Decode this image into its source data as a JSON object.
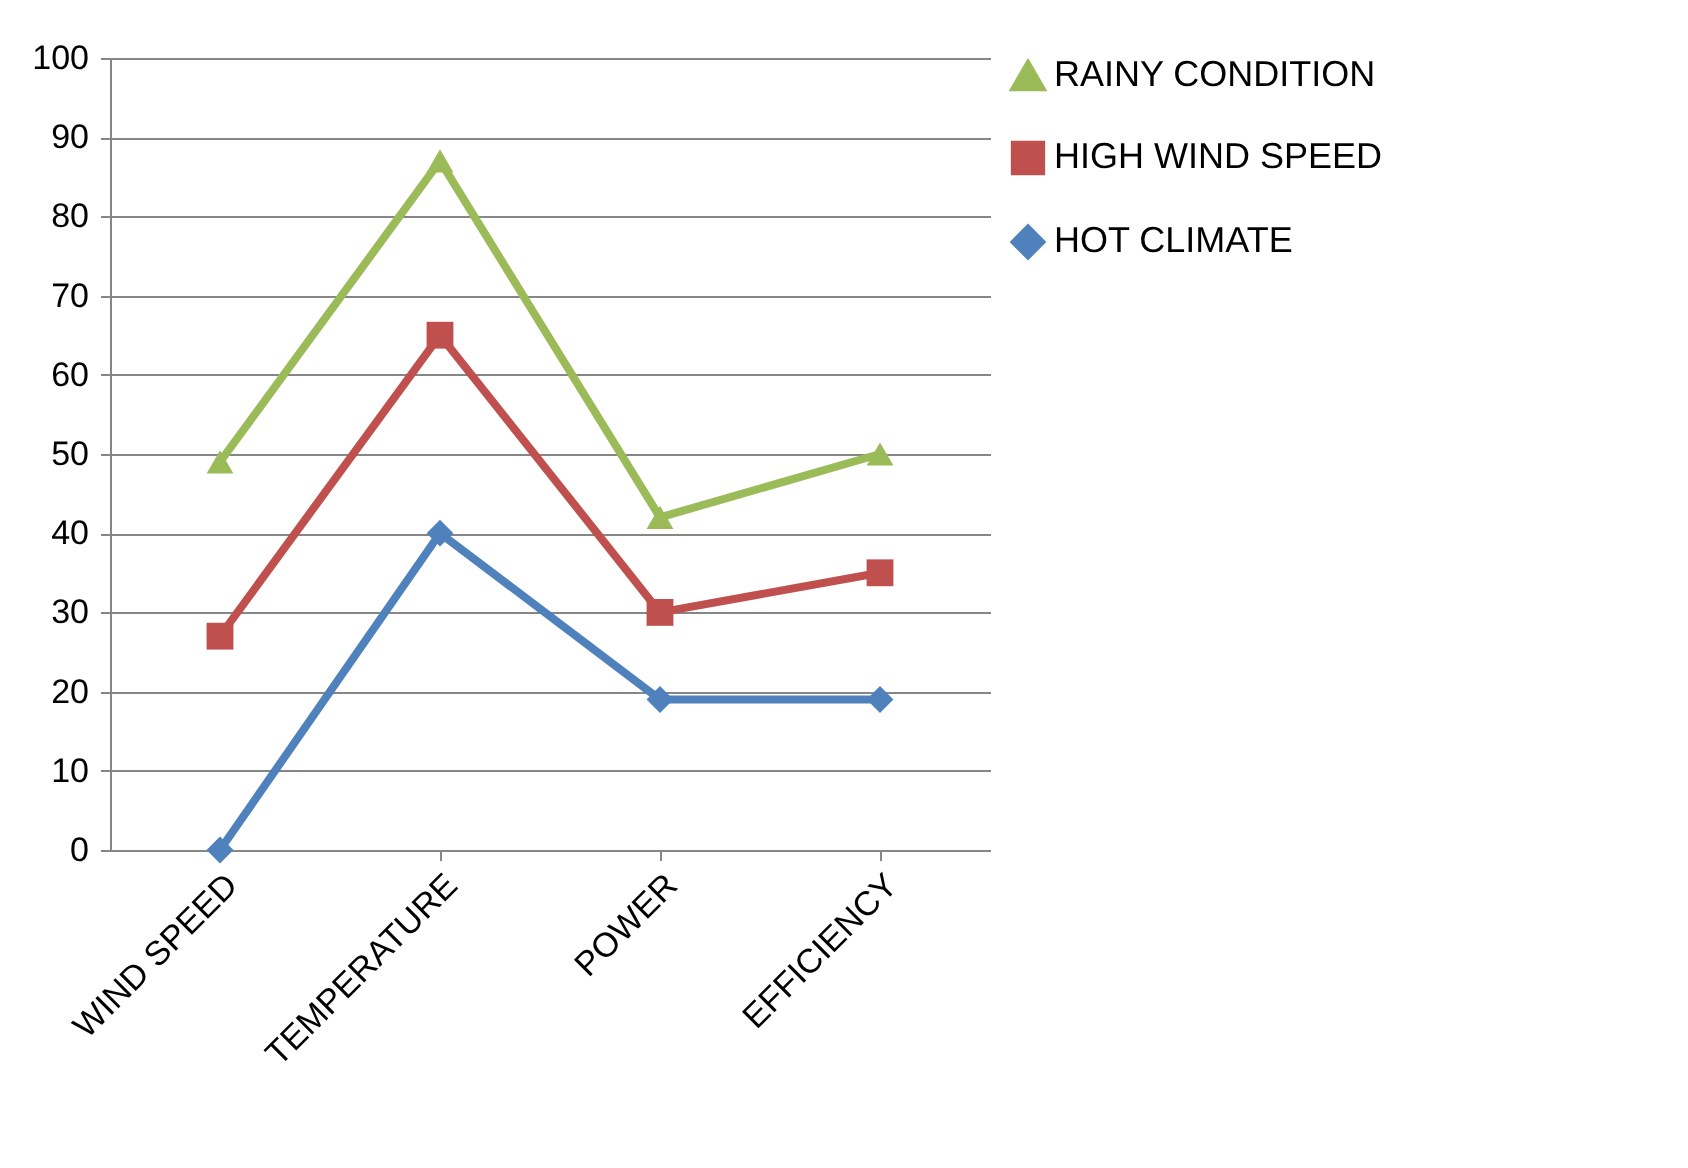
{
  "chart_data": {
    "type": "line",
    "categories": [
      "WIND SPEED",
      "TEMPERATURE",
      "POWER",
      "EFFICIENCY"
    ],
    "series": [
      {
        "name": "RAINY CONDITION",
        "color": "#9bbb59",
        "marker": "triangle",
        "values": [
          49,
          87,
          42,
          50
        ]
      },
      {
        "name": "HIGH WIND SPEED",
        "color": "#c0504d",
        "marker": "square",
        "values": [
          27,
          65,
          30,
          35
        ]
      },
      {
        "name": "HOT CLIMATE",
        "color": "#4f81bd",
        "marker": "diamond",
        "values": [
          0,
          40,
          19,
          19
        ]
      }
    ],
    "ylim": [
      0,
      100
    ],
    "yticks": [
      0,
      10,
      20,
      30,
      40,
      50,
      60,
      70,
      80,
      90,
      100
    ],
    "grid": "y",
    "legend": "right",
    "line_style": "solid"
  }
}
